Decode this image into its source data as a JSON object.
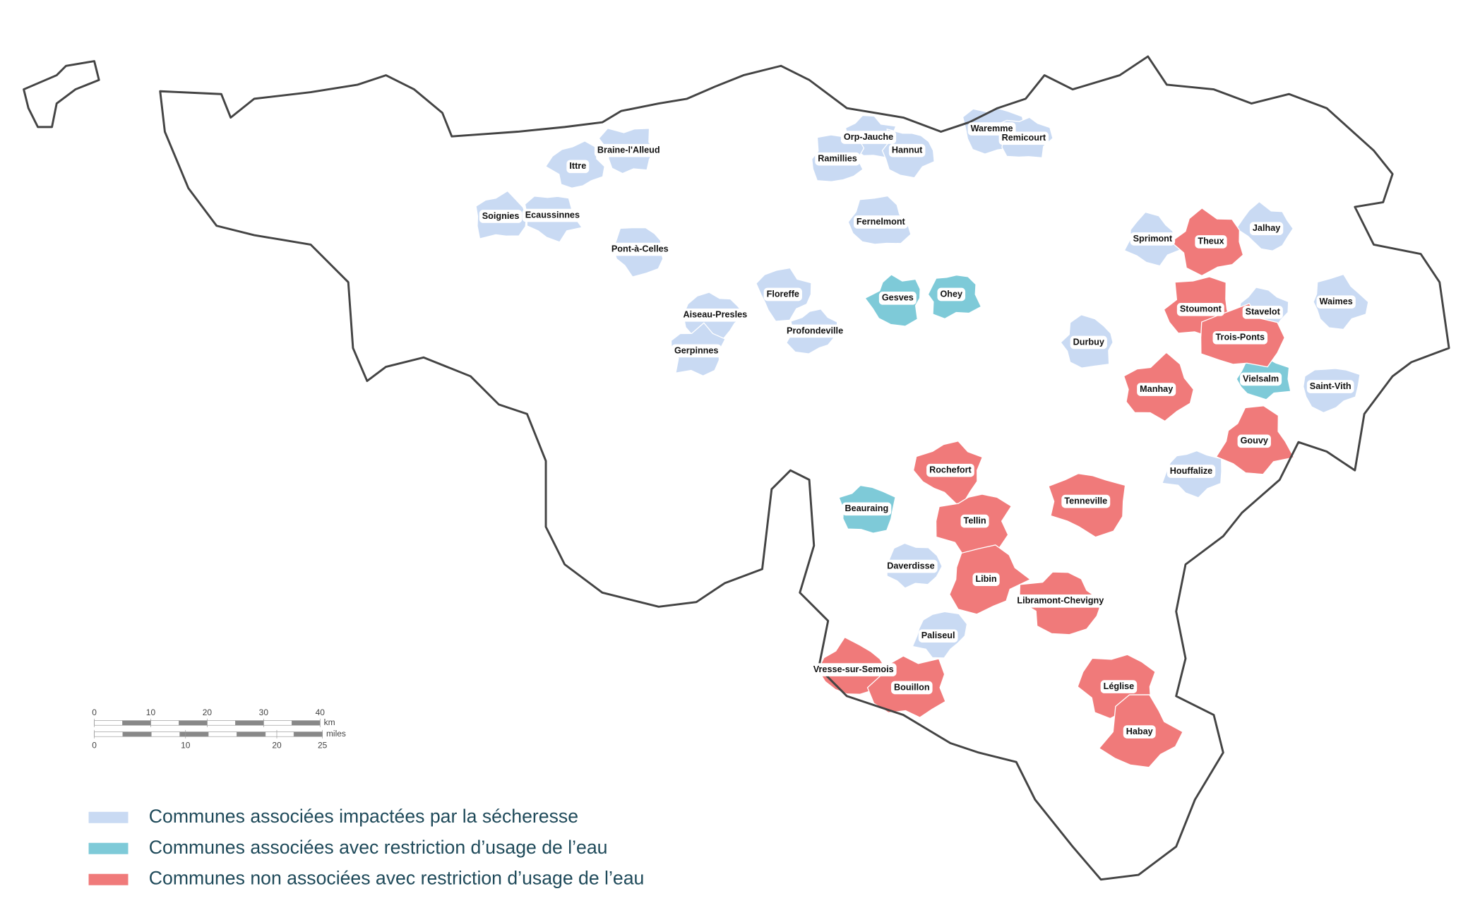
{
  "legend": [
    {
      "label": "Communes associées impactées par la sécheresse",
      "color": "#c9daf3",
      "communes": [
        "Ittre",
        "Braine-l'Alleud",
        "Soignies",
        "Ecaussinnes",
        "Pont-à-Celles",
        "Aiseau-Presles",
        "Gerpinnes",
        "Floreffe",
        "Profondeville",
        "Orp-Jauche",
        "Hannut",
        "Ramillies",
        "Fernelmont",
        "Waremme",
        "Remicourt",
        "Sprimont",
        "Jalhay",
        "Stavelot",
        "Waimes",
        "Durbuy",
        "Saint-Vith",
        "Houffalize",
        "Daverdisse",
        "Paliseul"
      ]
    },
    {
      "label": "Communes associées avec restriction d’usage de l’eau",
      "color": "#7ecad8",
      "communes": [
        "Gesves",
        "Ohey",
        "Vielsalm",
        "Beauraing"
      ]
    },
    {
      "label": "Communes non associées avec restriction d’usage de l’eau",
      "color": "#f07a7a",
      "communes": [
        "Theux",
        "Stoumont",
        "Trois-Ponts",
        "Manhay",
        "Gouvy",
        "Rochefort",
        "Tellin",
        "Tenneville",
        "Libin",
        "Libramont-Chevigny",
        "Vresse-sur-Semois",
        "Bouillon",
        "Léglise",
        "Habay"
      ]
    }
  ],
  "scale": {
    "km": {
      "unit": "km",
      "ticks": [
        0,
        10,
        20,
        30,
        40
      ]
    },
    "miles": {
      "unit": "miles",
      "ticks": [
        0,
        10,
        20,
        25
      ]
    }
  }
}
